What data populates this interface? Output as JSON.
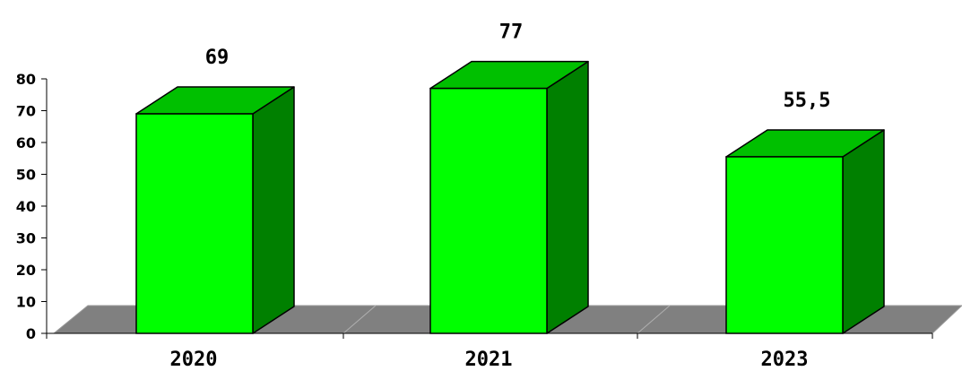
{
  "chart_data": {
    "type": "bar",
    "style": "3d-column",
    "categories": [
      "2020",
      "2021",
      "2023"
    ],
    "values": [
      69,
      77,
      55.5
    ],
    "data_labels": [
      "69",
      "77",
      "55,5"
    ],
    "ylim": [
      0,
      80
    ],
    "yticks": [
      "0",
      "10",
      "20",
      "30",
      "40",
      "50",
      "60",
      "70",
      "80"
    ],
    "title": "",
    "xlabel": "",
    "ylabel": "",
    "grid": false,
    "legend": "none",
    "colors": {
      "bar_front": "#00ff00",
      "bar_top": "#00c000",
      "bar_side": "#008000",
      "floor": "#808080",
      "outline": "#000000"
    }
  }
}
